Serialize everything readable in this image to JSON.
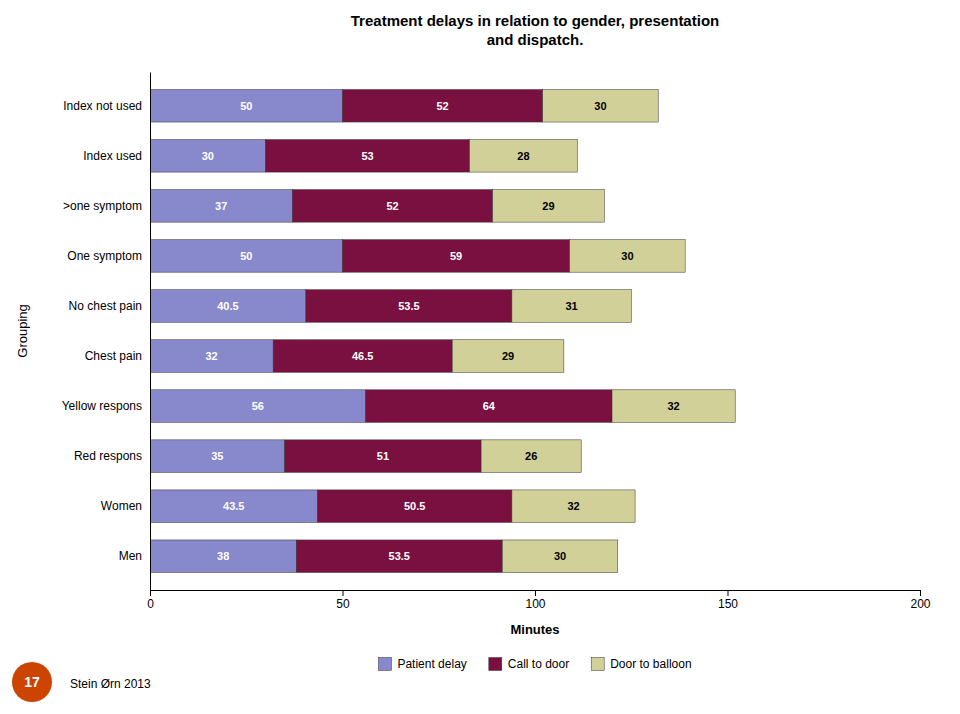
{
  "chart_data": {
    "type": "bar",
    "orientation": "horizontal",
    "stacked": true,
    "data_labels": true,
    "grid": false,
    "legend": "bottom",
    "title": "Treatment delays in relation to gender, presentation\nand dispatch.",
    "xlabel": "Minutes",
    "ylabel": "Grouping",
    "categories": [
      "Index not used",
      "Index used",
      ">one symptom",
      "One symptom",
      "No chest pain",
      "Chest pain",
      "Yellow respons",
      "Red respons",
      "Women",
      "Men"
    ],
    "series": [
      {
        "name": "Patient delay",
        "color": "#8888cc",
        "values": [
          50,
          30,
          37,
          50,
          40.5,
          32,
          56,
          35,
          43.5,
          38
        ]
      },
      {
        "name": "Call to door",
        "color": "#7a1040",
        "values": [
          52,
          53,
          52,
          59,
          53.5,
          46.5,
          64,
          51,
          50.5,
          53.5
        ]
      },
      {
        "name": "Door to balloon",
        "color": "#d0d098",
        "values": [
          30,
          28,
          29,
          30,
          31,
          29,
          32,
          26,
          32,
          30
        ]
      }
    ],
    "xlim": [
      0,
      200
    ],
    "xticks": [
      0,
      50,
      100,
      150,
      200
    ],
    "annotations": [
      "Stein Ørn 2013",
      "17"
    ]
  }
}
